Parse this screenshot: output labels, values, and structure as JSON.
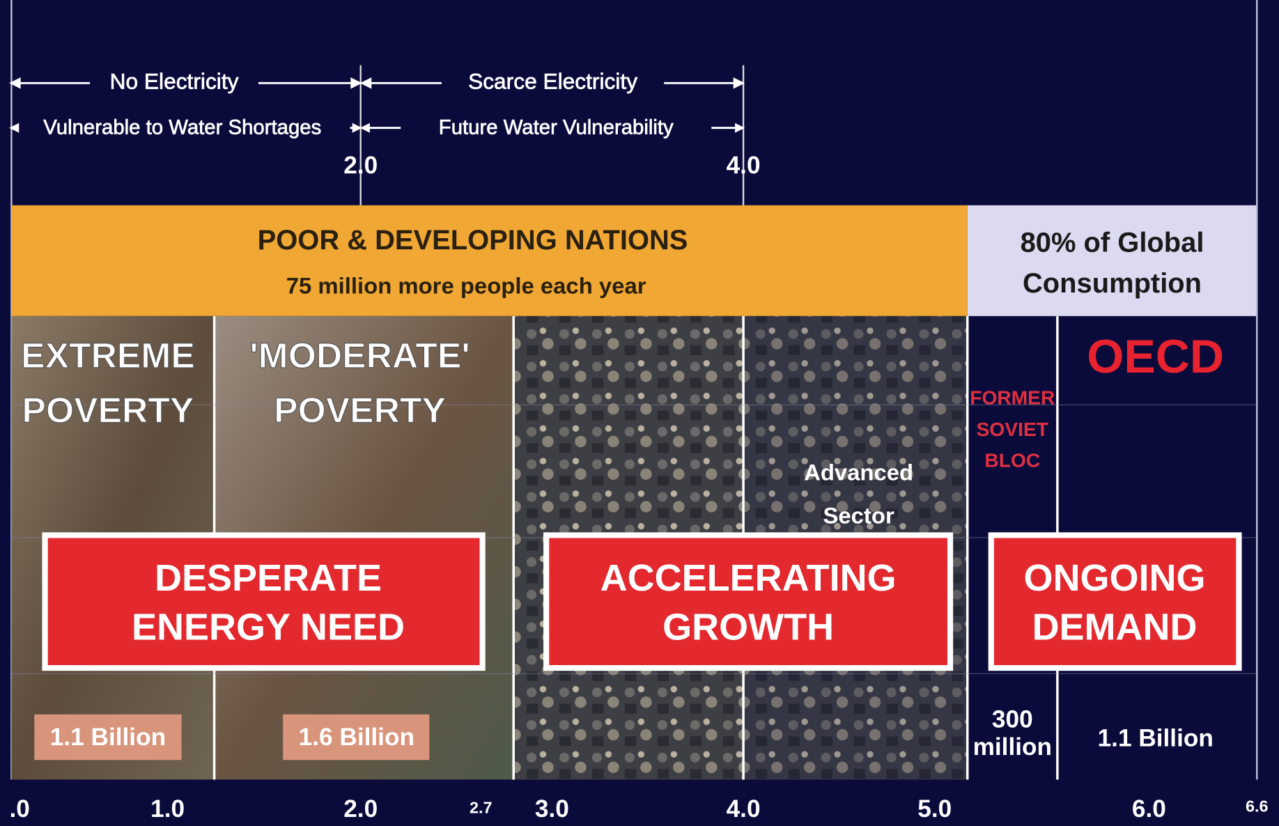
{
  "top_labels": {
    "row1": [
      "No Electricity",
      "Scarce Electricity"
    ],
    "row2": [
      "Vulnerable to Water  Shortages",
      "Future Water Vulnerability"
    ],
    "ticks": [
      "2.0",
      "4.0"
    ]
  },
  "band": {
    "title": "POOR & DEVELOPING NATIONS",
    "subtitle": "75 million more people each year",
    "consumption": [
      "80% of Global",
      "Consumption"
    ]
  },
  "segments": {
    "extreme": {
      "title": [
        "EXTREME",
        "POVERTY"
      ],
      "population": "1.1 Billion"
    },
    "moderate": {
      "title": [
        "'MODERATE'",
        "POVERTY"
      ],
      "population": "1.6 Billion"
    },
    "advanced": [
      "Advanced",
      "Sector"
    ],
    "soviet": {
      "title": [
        "FORMER",
        "SOVIET",
        "BLOC"
      ],
      "population": [
        "300",
        "million"
      ]
    },
    "oecd": {
      "title": "OECD",
      "population": "1.1 Billion"
    }
  },
  "boxes": [
    [
      "DESPERATE",
      "ENERGY NEED"
    ],
    [
      "ACCELERATING",
      "GROWTH"
    ],
    [
      "ONGOING",
      "DEMAND"
    ]
  ],
  "axis_ticks": [
    ".0",
    "1.0",
    "2.0",
    "2.7",
    "3.0",
    "4.0",
    "5.0",
    "6.0",
    "6.6"
  ]
}
